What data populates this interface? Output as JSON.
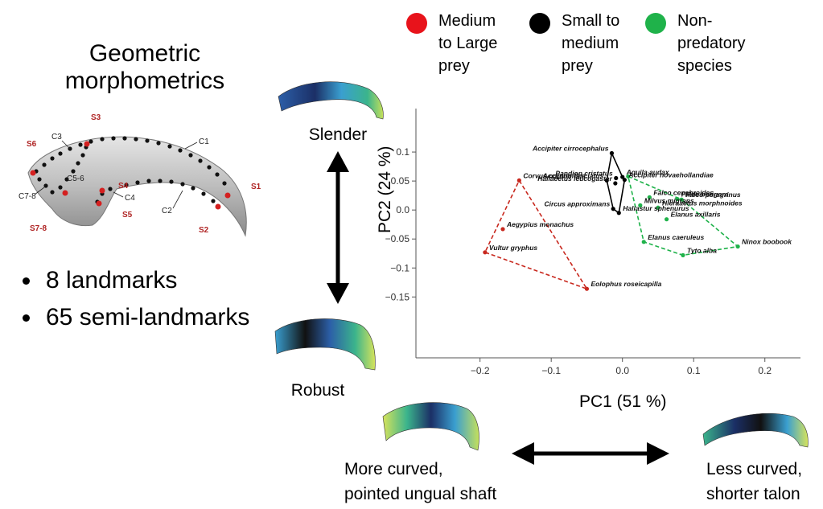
{
  "title_line1": "Geometric",
  "title_line2": "morphometrics",
  "bullets": [
    "8 landmarks",
    "65 semi-landmarks"
  ],
  "talon_labels": {
    "landmarks": [
      "S1",
      "S2",
      "S3",
      "S4",
      "S5",
      "S6",
      "S7-8"
    ],
    "curves": [
      "C1",
      "C2",
      "C3",
      "C4",
      "C5-6",
      "C7-8"
    ]
  },
  "legend": [
    {
      "label_lines": [
        "Medium",
        "to Large",
        "prey"
      ],
      "color": "#e8131b"
    },
    {
      "label_lines": [
        "Small to",
        "medium",
        "prey"
      ],
      "color": "#000000"
    },
    {
      "label_lines": [
        "Non-",
        "predatory",
        "species"
      ],
      "color": "#1fb24a"
    }
  ],
  "shape_labels": {
    "top": "Slender",
    "bottom": "Robust",
    "left_lines": [
      "More curved,",
      "pointed ungual shaft"
    ],
    "right_lines": [
      "Less curved,",
      "shorter talon"
    ]
  },
  "chart_data": {
    "type": "scatter",
    "xlabel": "PC1 (51 %)",
    "ylabel": "PC2 (24 %)",
    "xlim": [
      -0.29,
      0.25
    ],
    "ylim": [
      -0.255,
      0.175
    ],
    "xticks": [
      -0.2,
      -0.1,
      0.0,
      0.1,
      0.2
    ],
    "xtick_labels": [
      "−0.2",
      "−0.1",
      "0.0",
      "0.1",
      "0.2"
    ],
    "yticks": [
      0.1,
      0.05,
      0.0,
      -0.05,
      -0.1,
      -0.15
    ],
    "ytick_labels": [
      "0.1",
      "0.05",
      "0.0",
      "−0.05",
      "−0.1",
      "−0.15"
    ],
    "grid": false,
    "series": [
      {
        "name": "Medium to Large prey",
        "color": "#c8281e",
        "hull": "dashed",
        "points": [
          {
            "label": "Corvus coronoides",
            "x": -0.145,
            "y": 0.051
          },
          {
            "label": "Aegypius monachus",
            "x": -0.168,
            "y": -0.033
          },
          {
            "label": "Vultur gryphus",
            "x": -0.193,
            "y": -0.073
          },
          {
            "label": "Eolophus roseicapilla",
            "x": -0.05,
            "y": -0.136
          }
        ],
        "hull_order": [
          0,
          3,
          2
        ]
      },
      {
        "name": "Small to medium prey",
        "color": "#000000",
        "hull": "solid",
        "points": [
          {
            "label": "Accipiter cirrocephalus",
            "x": -0.015,
            "y": 0.098
          },
          {
            "label": "Pandion cristatus",
            "x": -0.009,
            "y": 0.055
          },
          {
            "label": "Aquila audax",
            "x": 0.0,
            "y": 0.057
          },
          {
            "label": "Accipiter fasciatus",
            "x": -0.022,
            "y": 0.051
          },
          {
            "label": "Accipiter novaehollandiae",
            "x": 0.003,
            "y": 0.052
          },
          {
            "label": "Haliaeetus leucogaster",
            "x": -0.01,
            "y": 0.046
          },
          {
            "label": "Circus approximans",
            "x": -0.013,
            "y": 0.002
          },
          {
            "label": "Haliastur sphenurus",
            "x": -0.005,
            "y": -0.005
          }
        ],
        "hull_order": [
          0,
          2,
          4,
          7,
          6,
          3
        ]
      },
      {
        "name": "Non-predatory species",
        "color": "#1fb24a",
        "hull": "dashed",
        "points": [
          {
            "label": "Falco cenchroides",
            "x": 0.038,
            "y": 0.022
          },
          {
            "label": "Falco berigora",
            "x": 0.077,
            "y": 0.019
          },
          {
            "label": "Falco peregrinus",
            "x": 0.083,
            "y": 0.018
          },
          {
            "label": "Milvus migrans",
            "x": 0.025,
            "y": 0.008
          },
          {
            "label": "Hieraaetus morphnoides",
            "x": 0.05,
            "y": 0.004
          },
          {
            "label": "Elanus axillaris",
            "x": 0.062,
            "y": -0.016
          },
          {
            "label": "Elanus caeruleus",
            "x": 0.03,
            "y": -0.055
          },
          {
            "label": "Ninox boobook",
            "x": 0.162,
            "y": -0.063
          },
          {
            "label": "Tyto alba",
            "x": 0.085,
            "y": -0.078
          },
          {
            "label": "Accipiter novaehollandiae (green)",
            "x": 0.008,
            "y": 0.058
          }
        ],
        "hull_order": [
          9,
          2,
          7,
          8,
          6
        ]
      }
    ]
  }
}
